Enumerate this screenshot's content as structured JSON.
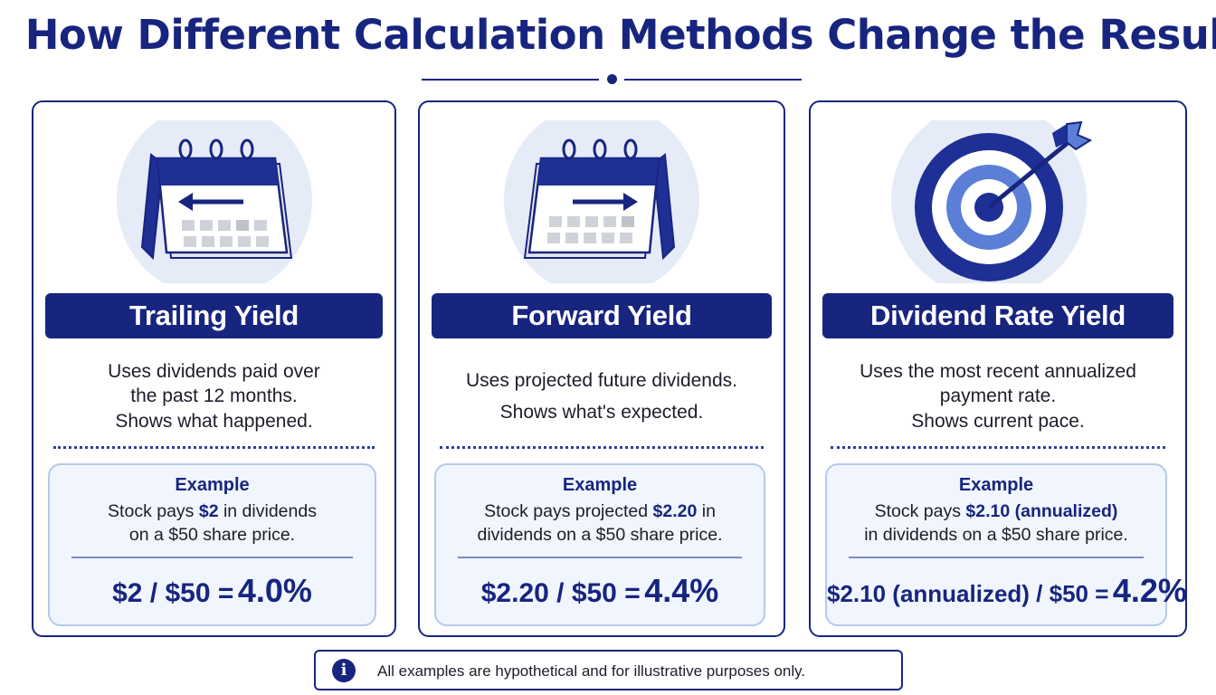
{
  "title": "How Different Calculation Methods Change the Result",
  "cards": [
    {
      "icon": "calendar-back-arrow-icon",
      "heading": "Trailing Yield",
      "desc": [
        "Uses dividends paid over",
        "the past 12 months.",
        "Shows what happened."
      ],
      "example": {
        "title": "Example",
        "line1_pre": "Stock pays ",
        "line1_em": "$2",
        "line1_post": " in dividends",
        "line2_pre": "on a $50 share price.",
        "line2_em": "",
        "line2_post": "",
        "formula": "$2 / $50 =",
        "result": "4.0%"
      }
    },
    {
      "icon": "calendar-forward-arrow-icon",
      "heading": "Forward Yield",
      "desc": [
        "Uses projected future dividends.",
        "Shows what's expected."
      ],
      "example": {
        "title": "Example",
        "line1_pre": "Stock pays projected ",
        "line1_em": "$2.20",
        "line1_post": " in",
        "line2_pre": "dividends on a $50 share price.",
        "line2_em": "",
        "line2_post": "",
        "formula": "$2.20 / $50 =",
        "result": "4.4%"
      }
    },
    {
      "icon": "target-arrow-icon",
      "heading": "Dividend Rate Yield",
      "desc": [
        "Uses the most recent annualized",
        "payment rate.",
        "Shows current pace."
      ],
      "example": {
        "title": "Example",
        "line1_pre": "Stock pays ",
        "line1_em": "$2.10 (annualized)",
        "line1_post": "",
        "line2_pre": "in dividends on a $50 share price.",
        "line2_em": "",
        "line2_post": "",
        "formula": "$2.10 (annualized) / $50 =",
        "result": "4.2%"
      }
    }
  ],
  "note": {
    "icon": "info-icon",
    "symbol": "i",
    "text": "All examples are hypothetical and for illustrative purposes only."
  },
  "colors": {
    "navy": "#17257f",
    "mid_blue": "#5b7fd6",
    "light_blue": "#e6ebf8",
    "grid_gray": "#cfd2d8"
  }
}
